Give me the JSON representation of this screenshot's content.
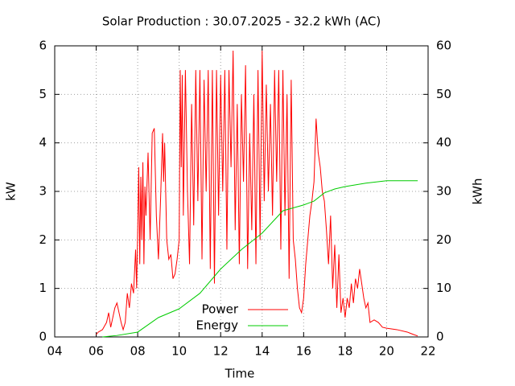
{
  "chart_data": {
    "type": "line",
    "title": "Solar Production : 30.07.2025 - 32.2 kWh (AC)",
    "xlabel": "Time",
    "ylabel": "kW",
    "y2label": "kWh",
    "xlim": [
      4,
      22
    ],
    "xticks": [
      {
        "value": 4,
        "label": "04"
      },
      {
        "value": 6,
        "label": "06"
      },
      {
        "value": 8,
        "label": "08"
      },
      10,
      12,
      14,
      16,
      18,
      20,
      22
    ],
    "ylim": [
      0,
      6
    ],
    "yticks": [
      0,
      1,
      2,
      3,
      4,
      5,
      6
    ],
    "y2lim": [
      0,
      60
    ],
    "y2ticks": [
      0,
      10,
      20,
      30,
      40,
      50,
      60
    ],
    "grid": true,
    "legend": "bottom-center",
    "series": [
      {
        "name": "Power",
        "color": "#ff0000",
        "axis": "y",
        "x": [
          6.0,
          6.1,
          6.3,
          6.5,
          6.6,
          6.7,
          6.9,
          7.0,
          7.1,
          7.2,
          7.3,
          7.4,
          7.5,
          7.6,
          7.7,
          7.8,
          7.9,
          7.95,
          8.0,
          8.05,
          8.1,
          8.15,
          8.2,
          8.25,
          8.3,
          8.35,
          8.4,
          8.5,
          8.6,
          8.7,
          8.8,
          8.9,
          9.0,
          9.1,
          9.2,
          9.25,
          9.3,
          9.4,
          9.5,
          9.6,
          9.7,
          9.8,
          9.9,
          10.0,
          10.05,
          10.1,
          10.15,
          10.2,
          10.3,
          10.4,
          10.5,
          10.6,
          10.7,
          10.8,
          10.9,
          11.0,
          11.1,
          11.2,
          11.3,
          11.4,
          11.5,
          11.6,
          11.7,
          11.8,
          11.9,
          12.0,
          12.1,
          12.2,
          12.3,
          12.4,
          12.5,
          12.6,
          12.7,
          12.8,
          12.9,
          13.0,
          13.1,
          13.2,
          13.3,
          13.4,
          13.5,
          13.6,
          13.7,
          13.8,
          13.9,
          14.0,
          14.1,
          14.2,
          14.3,
          14.4,
          14.5,
          14.6,
          14.7,
          14.8,
          14.9,
          15.0,
          15.1,
          15.2,
          15.3,
          15.4,
          15.5,
          15.6,
          15.7,
          15.8,
          15.9,
          16.0,
          16.1,
          16.2,
          16.3,
          16.4,
          16.5,
          16.6,
          16.7,
          16.8,
          16.9,
          17.0,
          17.1,
          17.2,
          17.3,
          17.4,
          17.5,
          17.6,
          17.7,
          17.8,
          17.9,
          18.0,
          18.1,
          18.2,
          18.3,
          18.4,
          18.5,
          18.6,
          18.7,
          18.8,
          18.9,
          19.0,
          19.1,
          19.2,
          19.4,
          19.6,
          19.8,
          20.0,
          20.5,
          21.0,
          21.3,
          21.5
        ],
        "values": [
          0.05,
          0.1,
          0.15,
          0.3,
          0.5,
          0.2,
          0.6,
          0.7,
          0.5,
          0.3,
          0.15,
          0.3,
          0.9,
          0.6,
          1.1,
          0.9,
          1.8,
          1.0,
          2.2,
          3.5,
          1.5,
          3.3,
          2.0,
          3.6,
          1.5,
          3.1,
          2.5,
          3.8,
          2.0,
          4.2,
          4.3,
          2.5,
          1.6,
          2.8,
          4.2,
          3.2,
          4.0,
          2.0,
          1.6,
          1.7,
          1.2,
          1.3,
          1.6,
          2.0,
          5.5,
          3.5,
          5.4,
          2.5,
          5.5,
          3.0,
          1.5,
          4.8,
          2.3,
          5.5,
          2.8,
          5.5,
          1.6,
          5.3,
          3.0,
          5.5,
          1.4,
          5.5,
          1.1,
          5.5,
          2.5,
          5.4,
          3.0,
          5.5,
          1.8,
          5.5,
          3.5,
          5.9,
          2.2,
          4.8,
          1.5,
          5.0,
          3.2,
          5.6,
          1.4,
          4.2,
          2.2,
          5.0,
          1.5,
          5.5,
          2.0,
          5.9,
          2.8,
          5.2,
          3.0,
          4.8,
          2.5,
          5.5,
          3.2,
          5.5,
          1.8,
          5.5,
          2.5,
          5.0,
          1.2,
          5.3,
          2.0,
          1.6,
          1.0,
          0.6,
          0.5,
          0.8,
          1.5,
          2.0,
          2.5,
          2.8,
          3.2,
          4.5,
          3.8,
          3.5,
          3.0,
          2.8,
          2.2,
          1.5,
          2.5,
          1.0,
          1.9,
          0.6,
          1.7,
          0.5,
          0.8,
          0.4,
          0.8,
          0.6,
          1.1,
          0.7,
          1.2,
          1.0,
          1.4,
          1.1,
          0.8,
          0.6,
          0.7,
          0.3,
          0.35,
          0.3,
          0.2,
          0.18,
          0.15,
          0.1,
          0.05,
          0.02
        ]
      },
      {
        "name": "Energy",
        "color": "#00cc00",
        "axis": "y2",
        "x": [
          6.3,
          7.0,
          8.0,
          9.0,
          10.0,
          11.0,
          12.0,
          13.0,
          14.0,
          15.0,
          16.0,
          16.5,
          17.0,
          17.5,
          18.0,
          19.0,
          20.0,
          21.5
        ],
        "values": [
          0,
          0.3,
          1,
          4,
          5.8,
          9,
          14,
          18,
          21.4,
          26,
          27.2,
          28,
          29.7,
          30.5,
          31,
          31.7,
          32.2,
          32.2
        ]
      }
    ]
  }
}
